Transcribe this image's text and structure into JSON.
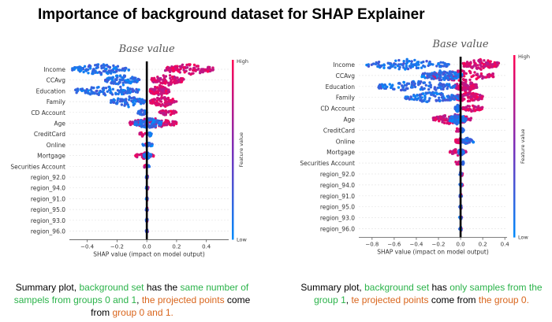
{
  "title": "Importance of background dataset for SHAP Explainer",
  "chart_data": [
    {
      "type": "scatter",
      "annotation": "Base value",
      "xlabel": "SHAP value (impact on model output)",
      "xlim": [
        -0.52,
        0.55
      ],
      "xticks": [
        "−0.4",
        "−0.2",
        "0.0",
        "0.2",
        "0.4"
      ],
      "xtick_values": [
        -0.4,
        -0.2,
        0.0,
        0.2,
        0.4
      ],
      "colorbar": {
        "label": "Feature value",
        "high": "High",
        "low": "Low",
        "colors": [
          "#ff0052",
          "#7b2eb8",
          "#008bfb"
        ]
      },
      "features": [
        {
          "name": "Income",
          "pos": [
            0.12,
            0.45
          ],
          "neg": [
            -0.5,
            -0.12
          ]
        },
        {
          "name": "CCAvg",
          "pos": [
            0.03,
            0.25
          ],
          "neg": [
            -0.28,
            -0.05
          ]
        },
        {
          "name": "Education",
          "pos": [
            0.02,
            0.15
          ],
          "neg": [
            -0.48,
            -0.05
          ]
        },
        {
          "name": "Family",
          "pos": [
            0.02,
            0.2
          ],
          "neg": [
            -0.25,
            -0.01
          ]
        },
        {
          "name": "CD Account",
          "pos": [
            0.08,
            0.2
          ],
          "neg": [
            -0.06,
            0.0
          ]
        },
        {
          "name": "Age",
          "pos": [
            -0.12,
            0.2
          ],
          "neg": [
            -0.08,
            0.1
          ]
        },
        {
          "name": "CreditCard",
          "pos": [
            -0.05,
            -0.01
          ],
          "neg": [
            0.0,
            0.04
          ]
        },
        {
          "name": "Online",
          "pos": [
            -0.01,
            0.02
          ],
          "neg": [
            -0.03,
            0.04
          ]
        },
        {
          "name": "Mortgage",
          "pos": [
            -0.08,
            0.05
          ],
          "neg": [
            -0.02,
            0.03
          ]
        },
        {
          "name": "Securities Account",
          "pos": [
            -0.02,
            0.0
          ],
          "neg": [
            0.0,
            0.02
          ]
        },
        {
          "name": "region_92.0",
          "pos": [
            0.0,
            0.01
          ],
          "neg": [
            -0.005,
            0.005
          ]
        },
        {
          "name": "region_94.0",
          "pos": [
            0.0,
            0.01
          ],
          "neg": [
            -0.005,
            0.005
          ]
        },
        {
          "name": "region_91.0",
          "pos": [
            0.0,
            0.005
          ],
          "neg": [
            -0.005,
            0.005
          ]
        },
        {
          "name": "region_95.0",
          "pos": [
            0.0,
            0.005
          ],
          "neg": [
            -0.005,
            0.005
          ]
        },
        {
          "name": "region_93.0",
          "pos": [
            0.0,
            0.005
          ],
          "neg": [
            -0.005,
            0.005
          ]
        },
        {
          "name": "region_96.0",
          "pos": [
            0.0,
            0.005
          ],
          "neg": [
            -0.005,
            0.005
          ]
        }
      ]
    },
    {
      "type": "scatter",
      "annotation": "Base value",
      "xlabel": "SHAP value (impact on model output)",
      "xlim": [
        -0.92,
        0.42
      ],
      "xticks": [
        "−0.8",
        "−0.6",
        "−0.4",
        "−0.2",
        "0.0",
        "0.2",
        "0.4"
      ],
      "xtick_values": [
        -0.8,
        -0.6,
        -0.4,
        -0.2,
        0.0,
        0.2,
        0.4
      ],
      "colorbar": {
        "label": "Feature value",
        "high": "High",
        "low": "Low",
        "colors": [
          "#ff0052",
          "#7b2eb8",
          "#008bfb"
        ]
      },
      "features": [
        {
          "name": "Income",
          "pos": [
            0.02,
            0.35
          ],
          "neg": [
            -0.85,
            -0.1
          ]
        },
        {
          "name": "CCAvg",
          "pos": [
            -0.3,
            0.3
          ],
          "neg": [
            -0.35,
            0.02
          ]
        },
        {
          "name": "Education",
          "pos": [
            -0.05,
            0.15
          ],
          "neg": [
            -0.75,
            -0.05
          ]
        },
        {
          "name": "Family",
          "pos": [
            -0.05,
            0.2
          ],
          "neg": [
            -0.5,
            -0.02
          ]
        },
        {
          "name": "CD Account",
          "pos": [
            0.02,
            0.2
          ],
          "neg": [
            -0.05,
            0.0
          ]
        },
        {
          "name": "Age",
          "pos": [
            -0.25,
            0.1
          ],
          "neg": [
            -0.1,
            0.05
          ]
        },
        {
          "name": "CreditCard",
          "pos": [
            -0.05,
            0.0
          ],
          "neg": [
            0.0,
            0.03
          ]
        },
        {
          "name": "Online",
          "pos": [
            -0.05,
            0.02
          ],
          "neg": [
            0.0,
            0.12
          ]
        },
        {
          "name": "Mortgage",
          "pos": [
            -0.1,
            0.05
          ],
          "neg": [
            -0.02,
            0.03
          ]
        },
        {
          "name": "Securities Account",
          "pos": [
            -0.05,
            0.0
          ],
          "neg": [
            0.0,
            0.03
          ]
        },
        {
          "name": "region_92.0",
          "pos": [
            0.0,
            0.02
          ],
          "neg": [
            -0.01,
            0.01
          ]
        },
        {
          "name": "region_94.0",
          "pos": [
            0.0,
            0.02
          ],
          "neg": [
            -0.01,
            0.01
          ]
        },
        {
          "name": "region_91.0",
          "pos": [
            0.0,
            0.01
          ],
          "neg": [
            -0.01,
            0.01
          ]
        },
        {
          "name": "region_95.0",
          "pos": [
            0.0,
            0.01
          ],
          "neg": [
            -0.01,
            0.01
          ]
        },
        {
          "name": "region_93.0",
          "pos": [
            0.0,
            0.01
          ],
          "neg": [
            -0.01,
            0.01
          ]
        },
        {
          "name": "region_96.0",
          "pos": [
            0.0,
            0.01
          ],
          "neg": [
            -0.01,
            0.01
          ]
        }
      ]
    }
  ],
  "captions": [
    {
      "p1": "Summary plot, ",
      "p2": "background set",
      "p3": " has the ",
      "p4": "same number of",
      "p5": "sampels from groups 0 and 1",
      "p6": ", ",
      "p7": "the projected points",
      "p8": " come",
      "p9": "from ",
      "p10": "group 0 and 1."
    },
    {
      "p1": "Summary plot, ",
      "p2": "background set",
      "p3": " has ",
      "p4": "only samples from the",
      "p5": "group 1",
      "p6": ", ",
      "p7": "te projected points",
      "p8": " come from ",
      "p9": "the group 0."
    }
  ]
}
